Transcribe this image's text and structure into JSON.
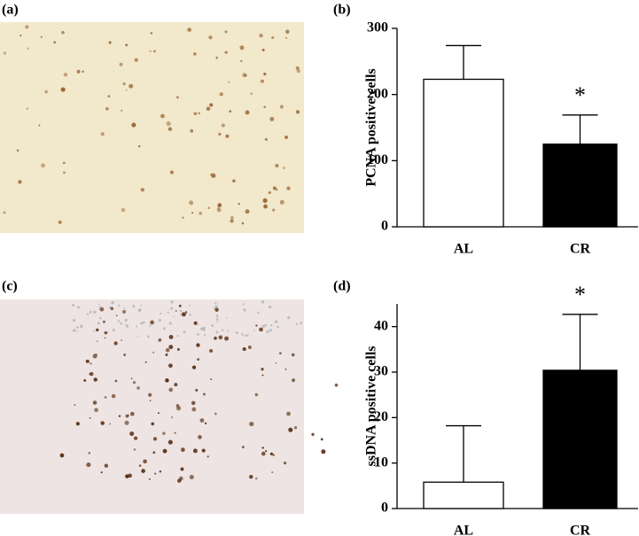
{
  "images": [
    {
      "label": "(a)"
    },
    {
      "label": "(c)"
    }
  ],
  "chart_data": [
    {
      "type": "bar",
      "panel_label": "(b)",
      "ylabel": "PCNA positive cells",
      "categories": [
        "AL",
        "CR"
      ],
      "values": [
        223,
        125
      ],
      "errors": [
        51,
        44
      ],
      "colors": [
        "#ffffff",
        "#000000"
      ],
      "annotation": "*",
      "ylim": [
        0,
        300
      ],
      "yticks": [
        0,
        100,
        200,
        300
      ]
    },
    {
      "type": "bar",
      "panel_label": "(d)",
      "ylabel": "ssDNA positive cells",
      "categories": [
        "AL",
        "CR"
      ],
      "values": [
        5.8,
        30.4
      ],
      "errors": [
        12.4,
        12.3
      ],
      "colors": [
        "#ffffff",
        "#000000"
      ],
      "annotation": "*",
      "ylim": [
        0,
        45
      ],
      "yticks": [
        0,
        10,
        20,
        30,
        40
      ]
    }
  ]
}
